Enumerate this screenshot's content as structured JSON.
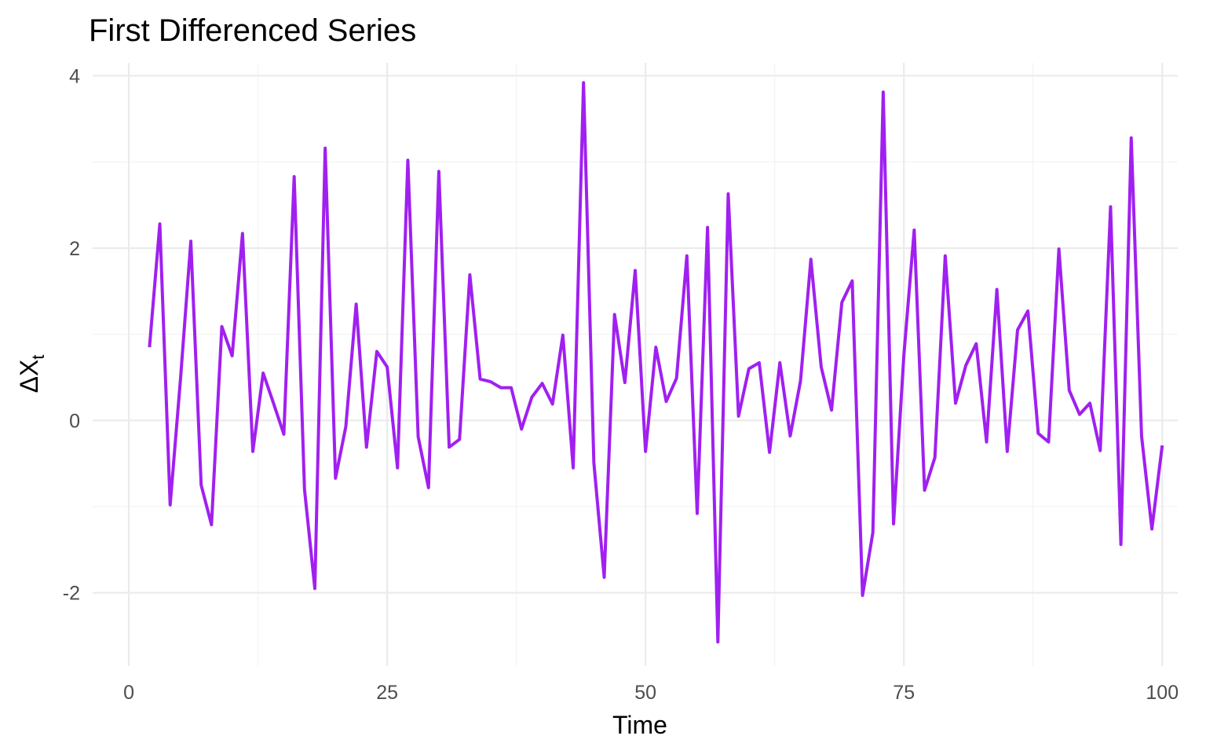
{
  "chart_data": {
    "type": "line",
    "title": "First Differenced Series",
    "xlabel": "Time",
    "ylabel": "ΔX",
    "ylabel_subscript": "t",
    "xlim": [
      -3.5,
      101.5
    ],
    "ylim": [
      -2.85,
      4.15
    ],
    "xticks": [
      0,
      25,
      50,
      75,
      100
    ],
    "xtick_labels": [
      "0",
      "25",
      "50",
      "75",
      "100"
    ],
    "yticks": [
      -2,
      0,
      2,
      4
    ],
    "ytick_labels": [
      "-2",
      "0",
      "2",
      "4"
    ],
    "grid": true,
    "line_color": "#A020F0",
    "series": [
      {
        "x": [
          2,
          3,
          4,
          5,
          6,
          7,
          8,
          9,
          10,
          11,
          12,
          13,
          14,
          15,
          16,
          17,
          18,
          19,
          20,
          21,
          22,
          23,
          24,
          25,
          26,
          27,
          28,
          29,
          30,
          31,
          32,
          33,
          34,
          35,
          36,
          37,
          38,
          39,
          40,
          41,
          42,
          43,
          44,
          45,
          46,
          47,
          48,
          49,
          50,
          51,
          52,
          53,
          54,
          55,
          56,
          57,
          58,
          59,
          60,
          61,
          62,
          63,
          64,
          65,
          66,
          67,
          68,
          69,
          70,
          71,
          72,
          73,
          74,
          75,
          76,
          77,
          78,
          79,
          80,
          81,
          82,
          83,
          84,
          85,
          86,
          87,
          88,
          89,
          90,
          91,
          92,
          93,
          94,
          95,
          96,
          97,
          98,
          99,
          100
        ],
        "values": [
          0.85,
          2.28,
          -0.98,
          0.48,
          2.08,
          -0.75,
          -1.21,
          1.09,
          0.75,
          2.17,
          -0.36,
          0.55,
          0.2,
          -0.16,
          2.83,
          -0.8,
          -1.95,
          3.16,
          -0.67,
          -0.07,
          1.35,
          -0.31,
          0.8,
          0.62,
          -0.55,
          3.02,
          -0.19,
          -0.78,
          2.89,
          -0.31,
          -0.22,
          1.69,
          0.48,
          0.45,
          0.38,
          0.38,
          -0.1,
          0.27,
          0.43,
          0.19,
          0.99,
          -0.55,
          3.92,
          -0.49,
          -1.82,
          1.23,
          0.44,
          1.74,
          -0.36,
          0.85,
          0.22,
          0.49,
          1.91,
          -1.08,
          2.24,
          -2.57,
          2.63,
          0.05,
          0.6,
          0.67,
          -0.37,
          0.67,
          -0.18,
          0.46,
          1.87,
          0.62,
          0.12,
          1.37,
          1.62,
          -2.03,
          -1.3,
          3.81,
          -1.2,
          0.76,
          2.21,
          -0.81,
          -0.43,
          1.91,
          0.2,
          0.64,
          0.89,
          -0.25,
          1.52,
          -0.36,
          1.05,
          1.27,
          -0.15,
          -0.25,
          1.99,
          0.35,
          0.07,
          0.2,
          -0.35,
          2.48,
          -1.44,
          3.28,
          -0.18,
          -1.26,
          -0.29
        ]
      }
    ]
  }
}
